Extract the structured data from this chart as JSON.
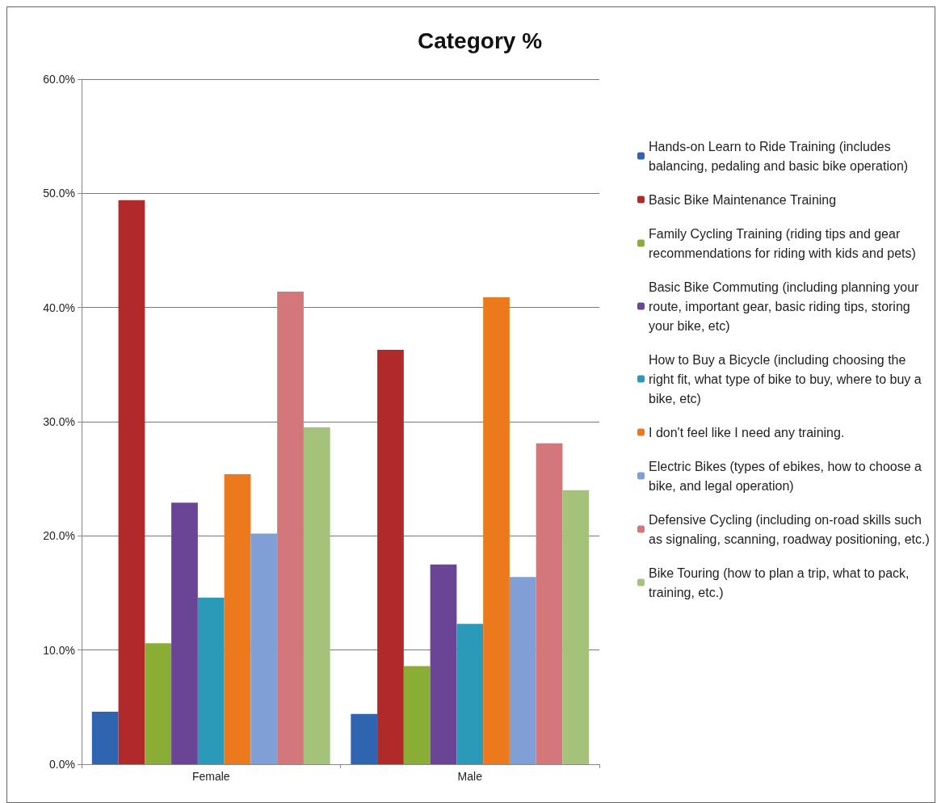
{
  "chart_data": {
    "type": "bar",
    "title": "Category %",
    "categories": [
      "Female",
      "Male"
    ],
    "series": [
      {
        "name": "Hands-on Learn to Ride Training (includes balancing, pedaling and basic bike operation)",
        "color": "#2f64b0",
        "values": [
          4.6,
          4.4
        ]
      },
      {
        "name": "Basic Bike Maintenance Training",
        "color": "#b02a2a",
        "values": [
          49.4,
          36.3
        ]
      },
      {
        "name": "Family Cycling Training (riding tips and gear recommendations for riding with kids and pets)",
        "color": "#8aae35",
        "values": [
          10.6,
          8.6
        ]
      },
      {
        "name": "Basic Bike Commuting (including planning your route, important gear, basic riding tips, storing your bike, etc)",
        "color": "#6a4596",
        "values": [
          22.9,
          17.5
        ]
      },
      {
        "name": "How to Buy a Bicycle (including choosing the right fit, what type of bike to buy, where to buy a bike, etc)",
        "color": "#2a9ab8",
        "values": [
          14.6,
          12.3
        ]
      },
      {
        "name": "I don't feel like I need any training.",
        "color": "#ec7a1c",
        "values": [
          25.4,
          40.9
        ]
      },
      {
        "name": "Electric Bikes (types of ebikes, how to choose a bike, and legal operation)",
        "color": "#7f9fd6",
        "values": [
          20.2,
          16.4
        ]
      },
      {
        "name": "Defensive Cycling (including on-road skills such as signaling, scanning, roadway positioning, etc.)",
        "color": "#d4777a",
        "values": [
          41.4,
          28.1
        ]
      },
      {
        "name": "Bike Touring (how to plan a trip, what to pack, training, etc.)",
        "color": "#a5c27a",
        "values": [
          29.5,
          24.0
        ]
      }
    ],
    "ylim": [
      0,
      60
    ],
    "yticks": [
      {
        "value": 0,
        "label": "0.0%"
      },
      {
        "value": 10,
        "label": "10.0%"
      },
      {
        "value": 20,
        "label": "20.0%"
      },
      {
        "value": 30,
        "label": "30.0%"
      },
      {
        "value": 40,
        "label": "40.0%"
      },
      {
        "value": 50,
        "label": "50.0%"
      },
      {
        "value": 60,
        "label": "60.0%"
      }
    ],
    "grid": "y",
    "legend": "right"
  }
}
